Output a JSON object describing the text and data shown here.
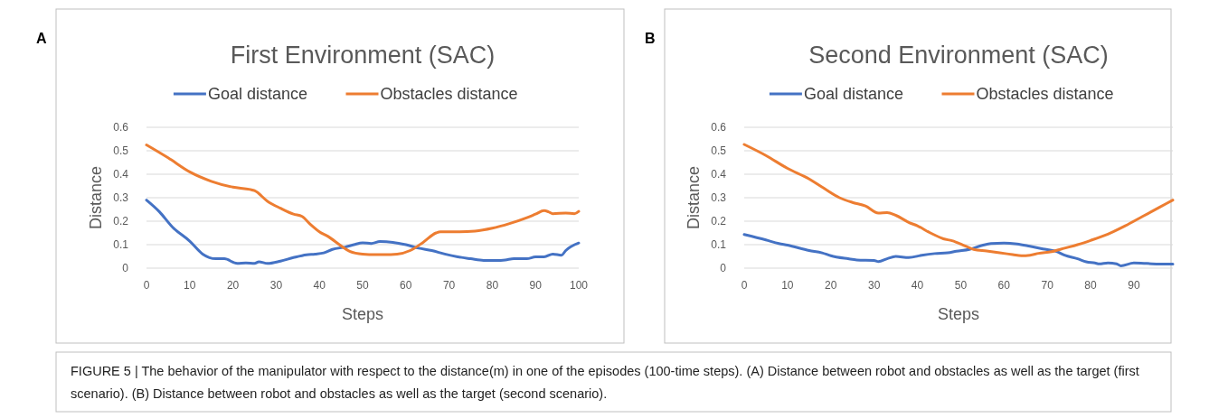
{
  "chart_data": [
    {
      "type": "line",
      "title": "First Environment (SAC)",
      "xlabel": "Steps",
      "ylabel": "Distance",
      "xlim": [
        0,
        100
      ],
      "xticks": [
        0,
        10,
        20,
        30,
        40,
        50,
        60,
        70,
        80,
        90,
        100
      ],
      "ylim": [
        0,
        0.6
      ],
      "yticks": [
        0,
        0.1,
        0.2,
        0.3,
        0.4,
        0.5,
        0.6
      ],
      "grid": "y",
      "legend": "top",
      "annotations": [
        "A",
        "FIGURE 5 | The behavior of the manipulator with respect to the distance(m) in one of the episodes (100-time steps). (A) Distance between robot and obstacles as well as the target (first scenario). (B) Distance between robot and obstacles as well as the target (second scenario)."
      ],
      "series": [
        {
          "name": "Goal distance",
          "color": "#4472c4",
          "x": [
            0,
            3,
            6,
            10,
            13,
            16,
            18,
            21,
            23,
            25,
            26,
            28,
            31,
            34,
            37,
            39,
            41,
            43,
            46,
            48,
            50,
            52,
            54,
            57,
            60,
            63,
            66,
            69,
            72,
            75,
            78,
            81,
            83,
            85,
            88,
            90,
            92,
            94,
            96,
            97,
            100
          ],
          "values": [
            0.29,
            0.24,
            0.175,
            0.115,
            0.06,
            0.04,
            0.04,
            0.02,
            0.022,
            0.02,
            0.027,
            0.02,
            0.03,
            0.045,
            0.057,
            0.06,
            0.065,
            0.08,
            0.09,
            0.1,
            0.108,
            0.105,
            0.113,
            0.11,
            0.1,
            0.085,
            0.075,
            0.06,
            0.048,
            0.04,
            0.033,
            0.033,
            0.035,
            0.04,
            0.04,
            0.048,
            0.048,
            0.06,
            0.055,
            0.075,
            0.107
          ]
        },
        {
          "name": "Obstacles distance",
          "color": "#ed7d31",
          "x": [
            0,
            5,
            10,
            15,
            20,
            24,
            25,
            28,
            31,
            34,
            36,
            38,
            40,
            42,
            45,
            47,
            50,
            53,
            55,
            58,
            61,
            64,
            67,
            68,
            72,
            76,
            80,
            84,
            88,
            90,
            92,
            93,
            94,
            97,
            99,
            100
          ],
          "values": [
            0.525,
            0.47,
            0.41,
            0.37,
            0.345,
            0.335,
            0.33,
            0.285,
            0.255,
            0.23,
            0.22,
            0.185,
            0.155,
            0.135,
            0.095,
            0.072,
            0.06,
            0.058,
            0.058,
            0.06,
            0.075,
            0.11,
            0.15,
            0.155,
            0.155,
            0.158,
            0.17,
            0.19,
            0.215,
            0.23,
            0.245,
            0.24,
            0.232,
            0.235,
            0.232,
            0.242
          ]
        }
      ]
    },
    {
      "type": "line",
      "title": "Second Environment (SAC)",
      "xlabel": "Steps",
      "ylabel": "Distance",
      "xlim": [
        0,
        99
      ],
      "xticks": [
        0,
        10,
        20,
        30,
        40,
        50,
        60,
        70,
        80,
        90
      ],
      "ylim": [
        0,
        0.6
      ],
      "yticks": [
        0,
        0.1,
        0.2,
        0.3,
        0.4,
        0.5,
        0.6
      ],
      "grid": "y",
      "legend": "top",
      "annotations": [
        "B"
      ],
      "series": [
        {
          "name": "Goal distance",
          "color": "#4472c4",
          "x": [
            0,
            5,
            8,
            10,
            15,
            18,
            20,
            24,
            26,
            30,
            31,
            33,
            35,
            38,
            41,
            44,
            47,
            49,
            52,
            55,
            57,
            60,
            63,
            66,
            69,
            72,
            74,
            77,
            79,
            81,
            82,
            84,
            86,
            87,
            90,
            93,
            96,
            99
          ],
          "values": [
            0.143,
            0.12,
            0.105,
            0.098,
            0.075,
            0.065,
            0.053,
            0.04,
            0.035,
            0.033,
            0.028,
            0.04,
            0.05,
            0.045,
            0.055,
            0.062,
            0.065,
            0.072,
            0.08,
            0.097,
            0.105,
            0.107,
            0.103,
            0.093,
            0.082,
            0.072,
            0.055,
            0.04,
            0.027,
            0.022,
            0.018,
            0.022,
            0.018,
            0.01,
            0.022,
            0.02,
            0.017,
            0.017
          ]
        },
        {
          "name": "Obstacles distance",
          "color": "#ed7d31",
          "x": [
            0,
            5,
            10,
            15,
            18,
            22,
            25,
            28,
            31,
            33,
            35,
            38,
            40,
            43,
            46,
            48,
            51,
            53,
            56,
            59,
            62,
            64,
            66,
            68,
            71,
            74,
            77,
            80,
            84,
            88,
            92,
            96,
            99
          ],
          "values": [
            0.527,
            0.48,
            0.425,
            0.38,
            0.345,
            0.3,
            0.28,
            0.265,
            0.235,
            0.237,
            0.225,
            0.195,
            0.18,
            0.15,
            0.125,
            0.117,
            0.095,
            0.08,
            0.073,
            0.065,
            0.058,
            0.053,
            0.055,
            0.063,
            0.07,
            0.085,
            0.1,
            0.118,
            0.145,
            0.18,
            0.22,
            0.26,
            0.29
          ]
        }
      ]
    }
  ]
}
